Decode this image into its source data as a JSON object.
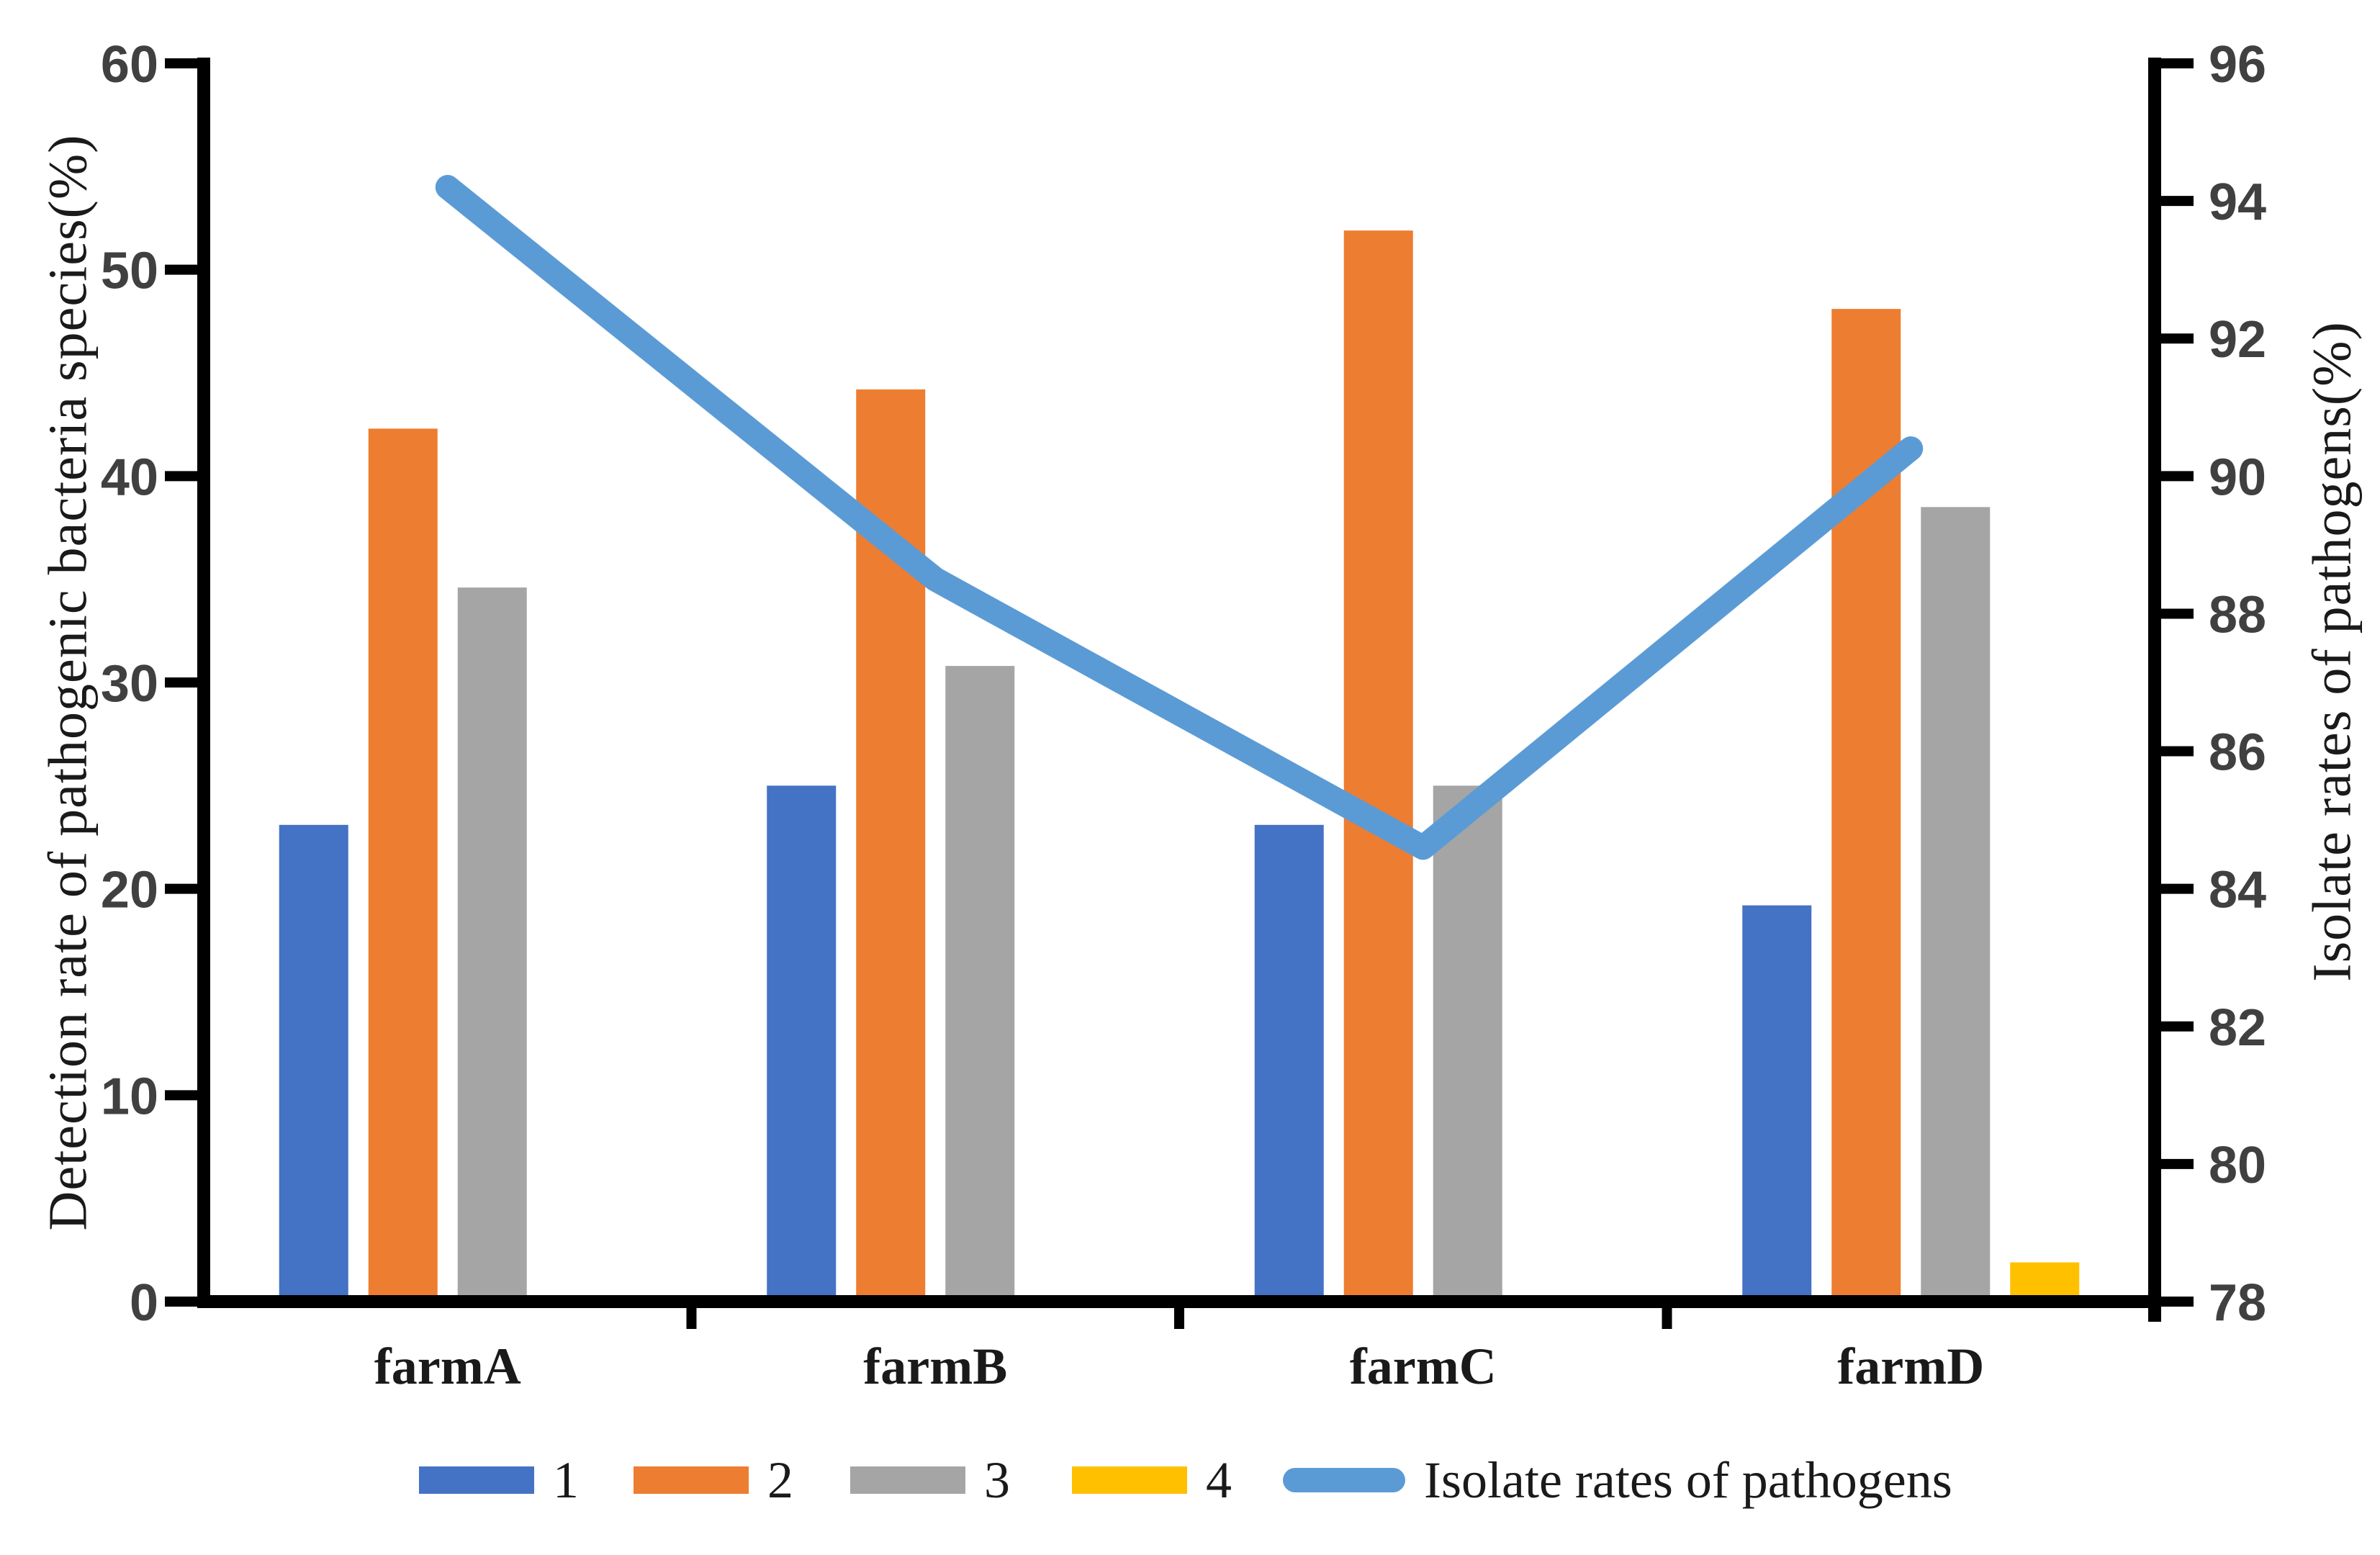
{
  "figure": {
    "background": "#ffffff"
  },
  "legend": {
    "items": [
      {
        "label": "1"
      },
      {
        "label": "2"
      },
      {
        "label": "3"
      },
      {
        "label": "4"
      },
      {
        "label": "Isolate rates of pathogens"
      }
    ]
  },
  "chart_data": {
    "type": "bar+line",
    "categories": [
      "farmA",
      "farmB",
      "farmC",
      "farmD"
    ],
    "bar_series": [
      {
        "name": "1",
        "color": "#4472C4",
        "axis": "left",
        "values": [
          23.1,
          25.0,
          23.1,
          19.2
        ]
      },
      {
        "name": "2",
        "color": "#ED7D31",
        "axis": "left",
        "values": [
          42.3,
          44.2,
          51.9,
          48.1
        ]
      },
      {
        "name": "3",
        "color": "#A5A5A5",
        "axis": "left",
        "values": [
          34.6,
          30.8,
          25.0,
          38.5
        ]
      },
      {
        "name": "4",
        "color": "#FFC000",
        "axis": "left",
        "values": [
          0,
          0,
          0,
          1.9
        ]
      }
    ],
    "line_series": {
      "name": "Isolate rates of pathogens",
      "color": "#5B9BD5",
      "axis": "right",
      "values": [
        94.2,
        88.5,
        84.6,
        90.4
      ]
    },
    "left_axis": {
      "label": "Detection rate of pathogenic bacteria species(%)",
      "min": 0,
      "max": 60,
      "step": 10,
      "tick_labels": [
        "0",
        "10",
        "20",
        "30",
        "40",
        "50",
        "60"
      ]
    },
    "right_axis": {
      "label": "Isolate rates of pathogens(%)",
      "min": 78,
      "max": 96,
      "step": 2,
      "tick_labels": [
        "78",
        "80",
        "82",
        "84",
        "86",
        "88",
        "90",
        "92",
        "94",
        "96"
      ]
    },
    "grid": false,
    "legend_position": "bottom",
    "axis_color": "#000000",
    "tick_label_color": "#404040",
    "text_color": "#1a1a1a"
  }
}
